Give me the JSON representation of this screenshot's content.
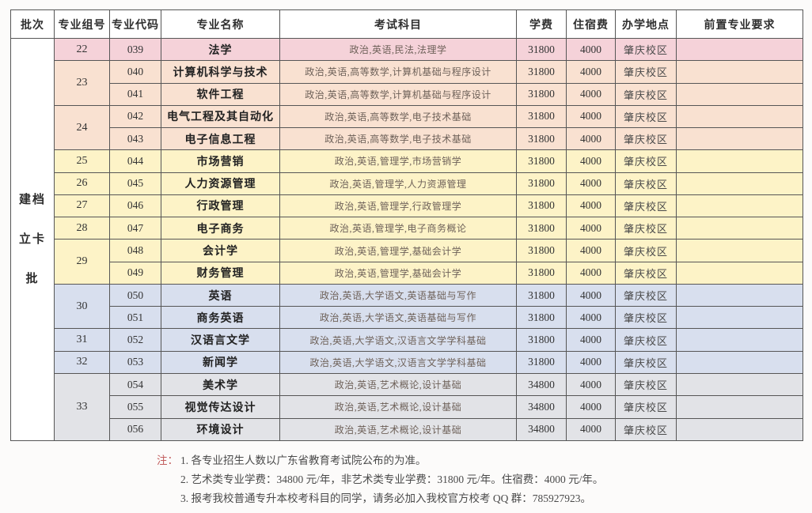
{
  "table": {
    "headers": [
      "批次",
      "专业组号",
      "专业代码",
      "专业名称",
      "考试科目",
      "学费",
      "住宿费",
      "办学地点",
      "前置专业要求"
    ],
    "batch": {
      "lines": [
        "建档",
        "立卡",
        "批"
      ]
    },
    "groups": [
      {
        "group": "22",
        "color_key": "pink",
        "rows": [
          {
            "code": "039",
            "major": "法学",
            "subjects": "政治,英语,民法,法理学",
            "tuition": "31800",
            "dorm": "4000",
            "campus": "肇庆校区",
            "prereq": ""
          }
        ]
      },
      {
        "group": "23",
        "color_key": "peach",
        "rows": [
          {
            "code": "040",
            "major": "计算机科学与技术",
            "subjects": "政治,英语,高等数学,计算机基础与程序设计",
            "tuition": "31800",
            "dorm": "4000",
            "campus": "肇庆校区",
            "prereq": ""
          },
          {
            "code": "041",
            "major": "软件工程",
            "subjects": "政治,英语,高等数学,计算机基础与程序设计",
            "tuition": "31800",
            "dorm": "4000",
            "campus": "肇庆校区",
            "prereq": ""
          }
        ]
      },
      {
        "group": "24",
        "color_key": "peach",
        "rows": [
          {
            "code": "042",
            "major": "电气工程及其自动化",
            "subjects": "政治,英语,高等数学,电子技术基础",
            "tuition": "31800",
            "dorm": "4000",
            "campus": "肇庆校区",
            "prereq": ""
          },
          {
            "code": "043",
            "major": "电子信息工程",
            "subjects": "政治,英语,高等数学,电子技术基础",
            "tuition": "31800",
            "dorm": "4000",
            "campus": "肇庆校区",
            "prereq": ""
          }
        ]
      },
      {
        "group": "25",
        "color_key": "yellow",
        "rows": [
          {
            "code": "044",
            "major": "市场营销",
            "subjects": "政治,英语,管理学,市场营销学",
            "tuition": "31800",
            "dorm": "4000",
            "campus": "肇庆校区",
            "prereq": ""
          }
        ]
      },
      {
        "group": "26",
        "color_key": "yellow",
        "rows": [
          {
            "code": "045",
            "major": "人力资源管理",
            "subjects": "政治,英语,管理学,人力资源管理",
            "tuition": "31800",
            "dorm": "4000",
            "campus": "肇庆校区",
            "prereq": ""
          }
        ]
      },
      {
        "group": "27",
        "color_key": "yellow",
        "rows": [
          {
            "code": "046",
            "major": "行政管理",
            "subjects": "政治,英语,管理学,行政管理学",
            "tuition": "31800",
            "dorm": "4000",
            "campus": "肇庆校区",
            "prereq": ""
          }
        ]
      },
      {
        "group": "28",
        "color_key": "yellow",
        "rows": [
          {
            "code": "047",
            "major": "电子商务",
            "subjects": "政治,英语,管理学,电子商务概论",
            "tuition": "31800",
            "dorm": "4000",
            "campus": "肇庆校区",
            "prereq": ""
          }
        ]
      },
      {
        "group": "29",
        "color_key": "yellow",
        "rows": [
          {
            "code": "048",
            "major": "会计学",
            "subjects": "政治,英语,管理学,基础会计学",
            "tuition": "31800",
            "dorm": "4000",
            "campus": "肇庆校区",
            "prereq": ""
          },
          {
            "code": "049",
            "major": "财务管理",
            "subjects": "政治,英语,管理学,基础会计学",
            "tuition": "31800",
            "dorm": "4000",
            "campus": "肇庆校区",
            "prereq": ""
          }
        ]
      },
      {
        "group": "30",
        "color_key": "blue",
        "rows": [
          {
            "code": "050",
            "major": "英语",
            "subjects": "政治,英语,大学语文,英语基础与写作",
            "tuition": "31800",
            "dorm": "4000",
            "campus": "肇庆校区",
            "prereq": ""
          },
          {
            "code": "051",
            "major": "商务英语",
            "subjects": "政治,英语,大学语文,英语基础与写作",
            "tuition": "31800",
            "dorm": "4000",
            "campus": "肇庆校区",
            "prereq": ""
          }
        ]
      },
      {
        "group": "31",
        "color_key": "blue",
        "rows": [
          {
            "code": "052",
            "major": "汉语言文学",
            "subjects": "政治,英语,大学语文,汉语言文学学科基础",
            "tuition": "31800",
            "dorm": "4000",
            "campus": "肇庆校区",
            "prereq": ""
          }
        ]
      },
      {
        "group": "32",
        "color_key": "blue",
        "rows": [
          {
            "code": "053",
            "major": "新闻学",
            "subjects": "政治,英语,大学语文,汉语言文学学科基础",
            "tuition": "31800",
            "dorm": "4000",
            "campus": "肇庆校区",
            "prereq": ""
          }
        ]
      },
      {
        "group": "33",
        "color_key": "gray",
        "rows": [
          {
            "code": "054",
            "major": "美术学",
            "subjects": "政治,英语,艺术概论,设计基础",
            "tuition": "34800",
            "dorm": "4000",
            "campus": "肇庆校区",
            "prereq": ""
          },
          {
            "code": "055",
            "major": "视觉传达设计",
            "subjects": "政治,英语,艺术概论,设计基础",
            "tuition": "34800",
            "dorm": "4000",
            "campus": "肇庆校区",
            "prereq": ""
          },
          {
            "code": "056",
            "major": "环境设计",
            "subjects": "政治,英语,艺术概论,设计基础",
            "tuition": "34800",
            "dorm": "4000",
            "campus": "肇庆校区",
            "prereq": ""
          }
        ]
      }
    ]
  },
  "notes": {
    "prefix": "注：",
    "lines": [
      "1. 各专业招生人数以广东省教育考试院公布的为准。",
      "2. 艺术类专业学费：34800 元/年，非艺术类专业学费：31800 元/年。住宿费：4000 元/年。",
      "3. 报考我校普通专升本校考科目的同学，请务必加入我校官方校考 QQ 群：785927923。"
    ]
  },
  "colors": {
    "row_pink": "#f5d2d9",
    "row_peach": "#f9e1d1",
    "row_yellow": "#fdf3c7",
    "row_blue": "#d8dfee",
    "row_gray": "#e2e3e7",
    "border": "#565656",
    "note_accent": "#c25f5f"
  }
}
